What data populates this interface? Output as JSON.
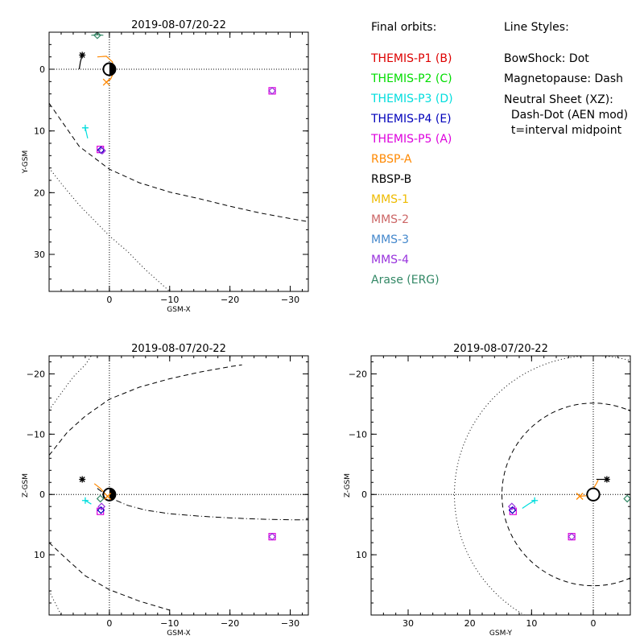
{
  "legend": {
    "orbits_title": "Final orbits:",
    "orbits": [
      {
        "label": "THEMIS-P1 (B)",
        "color": "#dd0000"
      },
      {
        "label": "THEMIS-P2 (C)",
        "color": "#00dd00"
      },
      {
        "label": "THEMIS-P3 (D)",
        "color": "#00dddd"
      },
      {
        "label": "THEMIS-P4 (E)",
        "color": "#0000bb"
      },
      {
        "label": "THEMIS-P5 (A)",
        "color": "#dd00dd"
      },
      {
        "label": "RBSP-A",
        "color": "#ff8800"
      },
      {
        "label": "RBSP-B",
        "color": "#000000"
      },
      {
        "label": "MMS-1",
        "color": "#eebb00"
      },
      {
        "label": "MMS-2",
        "color": "#cc6666"
      },
      {
        "label": "MMS-3",
        "color": "#4488cc"
      },
      {
        "label": "MMS-4",
        "color": "#9933dd"
      },
      {
        "label": "Arase (ERG)",
        "color": "#338866"
      }
    ],
    "styles_title": "Line Styles:",
    "styles": [
      "BowShock: Dot",
      "Magnetopause: Dash",
      "Neutral Sheet (XZ):",
      "  Dash-Dot (AEN mod)",
      "  t=interval midpoint"
    ]
  },
  "chart_data": [
    {
      "type": "scatter",
      "title": "2019-08-07/20-22",
      "xlabel": "GSM-X",
      "ylabel": "Y-GSM",
      "xlim": [
        10,
        -33
      ],
      "ylim": [
        -6,
        36
      ],
      "xticks": [
        0,
        -10,
        -20,
        -30
      ],
      "xtick_labels": [
        "0",
        "−10",
        "−20",
        "−30"
      ],
      "yticks": [
        0,
        10,
        20,
        30
      ],
      "ytick_labels": [
        "0",
        "10",
        "20",
        "30"
      ],
      "earth": [
        0,
        0
      ],
      "markers": [
        {
          "sat": "RBSP-B",
          "x": 4.5,
          "y": -2.3,
          "symbol": "asterisk",
          "color": "#000000"
        },
        {
          "sat": "RBSP-A",
          "x": 0.5,
          "y": 2.1,
          "symbol": "x",
          "color": "#ff8800"
        },
        {
          "sat": "Arase (ERG)",
          "x": 2.0,
          "y": -5.5,
          "symbol": "diamond",
          "color": "#338866"
        },
        {
          "sat": "THEMIS-P3 (D)",
          "x": 4.0,
          "y": 9.5,
          "symbol": "plus",
          "color": "#00dddd"
        },
        {
          "sat": "THEMIS-P5 (A)",
          "x": 1.5,
          "y": 13.0,
          "symbol": "square",
          "color": "#dd00dd"
        },
        {
          "sat": "THEMIS-P4 (E)",
          "x": 1.4,
          "y": 13.1,
          "symbol": "diamond",
          "color": "#0000bb"
        },
        {
          "sat": "MMS-4",
          "x": 1.2,
          "y": 13.2,
          "symbol": "diamond",
          "color": "#9933dd"
        },
        {
          "sat": "THEMIS-P5 (A)",
          "x": -27.0,
          "y": 3.5,
          "symbol": "square",
          "color": "#dd00dd"
        },
        {
          "sat": "MMS-4",
          "x": -27.0,
          "y": 3.5,
          "symbol": "diamond",
          "color": "#9933dd"
        }
      ],
      "tracks": [
        {
          "color": "#ff8800",
          "points": [
            [
              2.0,
              -2.0
            ],
            [
              0.5,
              -2.1
            ],
            [
              -0.5,
              -1.2
            ],
            [
              -0.8,
              0.3
            ],
            [
              -0.2,
              1.6
            ],
            [
              0.5,
              2.1
            ]
          ]
        },
        {
          "color": "#000000",
          "points": [
            [
              5.0,
              0.0
            ],
            [
              4.8,
              -1.2
            ],
            [
              4.5,
              -2.3
            ]
          ]
        },
        {
          "color": "#00dddd",
          "points": [
            [
              4.0,
              9.5
            ],
            [
              3.6,
              11.2
            ]
          ]
        },
        {
          "color": "#338866",
          "points": [
            [
              3.0,
              -5.5
            ],
            [
              2.0,
              -5.6
            ],
            [
              1.0,
              -5.5
            ]
          ]
        }
      ],
      "boundaries": [
        {
          "kind": "magnetopause",
          "style": "dash",
          "points": [
            [
              10,
              5.5
            ],
            [
              5,
              12.5
            ],
            [
              0,
              16.2
            ],
            [
              -5,
              18.4
            ],
            [
              -10,
              19.9
            ],
            [
              -15,
              21.0
            ],
            [
              -20,
              22.2
            ],
            [
              -25,
              23.3
            ],
            [
              -30,
              24.2
            ],
            [
              -33,
              24.7
            ]
          ]
        },
        {
          "kind": "bowshock",
          "style": "dot",
          "points": [
            [
              10,
              16.0
            ],
            [
              8,
              18.5
            ],
            [
              5,
              22.0
            ],
            [
              2,
              25.0
            ],
            [
              0,
              27.0
            ],
            [
              -3,
              29.5
            ],
            [
              -6,
              32.5
            ],
            [
              -10,
              36.0
            ]
          ]
        }
      ]
    },
    {
      "type": "scatter",
      "title": "2019-08-07/20-22",
      "xlabel": "GSM-X",
      "ylabel": "Z-GSM",
      "xlim": [
        10,
        -33
      ],
      "ylim": [
        -23,
        20
      ],
      "xticks": [
        0,
        -10,
        -20,
        -30
      ],
      "xtick_labels": [
        "0",
        "−10",
        "−20",
        "−30"
      ],
      "yticks": [
        -20,
        -10,
        0,
        10
      ],
      "ytick_labels": [
        "−20",
        "−10",
        "0",
        "10"
      ],
      "earth": [
        0,
        0
      ],
      "markers": [
        {
          "sat": "RBSP-B",
          "x": 4.5,
          "y": -2.5,
          "symbol": "asterisk",
          "color": "#000000"
        },
        {
          "sat": "THEMIS-P3 (D)",
          "x": 4.0,
          "y": 1.0,
          "symbol": "plus",
          "color": "#00dddd"
        },
        {
          "sat": "THEMIS-P5 (A)",
          "x": 1.5,
          "y": 2.8,
          "symbol": "square",
          "color": "#dd00dd"
        },
        {
          "sat": "THEMIS-P4 (E)",
          "x": 1.4,
          "y": 2.6,
          "symbol": "diamond",
          "color": "#0000bb"
        },
        {
          "sat": "MMS-4",
          "x": 1.3,
          "y": 2.0,
          "symbol": "diamond",
          "color": "#9933dd"
        },
        {
          "sat": "Arase (ERG)",
          "x": 1.5,
          "y": 0.7,
          "symbol": "diamond",
          "color": "#338866"
        },
        {
          "sat": "RBSP-A",
          "x": 0.3,
          "y": 0.3,
          "symbol": "x",
          "color": "#ff8800"
        },
        {
          "sat": "THEMIS-P5 (A)",
          "x": -27.0,
          "y": 7.0,
          "symbol": "square",
          "color": "#dd00dd"
        },
        {
          "sat": "MMS-4",
          "x": -27.0,
          "y": 7.0,
          "symbol": "diamond",
          "color": "#9933dd"
        }
      ],
      "tracks": [
        {
          "color": "#ff8800",
          "points": [
            [
              2.5,
              -1.8
            ],
            [
              1.5,
              -1.0
            ],
            [
              0.3,
              0.3
            ]
          ]
        },
        {
          "color": "#00dddd",
          "points": [
            [
              4.0,
              1.0
            ],
            [
              3.0,
              1.6
            ]
          ]
        }
      ],
      "boundaries": [
        {
          "kind": "magnetopause",
          "style": "dash",
          "points": [
            [
              10,
              8.0
            ],
            [
              7,
              10.8
            ],
            [
              4,
              13.5
            ],
            [
              0,
              15.8
            ],
            [
              -5,
              17.7
            ],
            [
              -8,
              18.6
            ],
            [
              -10,
              19.2
            ]
          ]
        },
        {
          "kind": "magnetopause",
          "style": "dash",
          "points": [
            [
              10,
              -6.5
            ],
            [
              7,
              -10.3
            ],
            [
              4,
              -13.0
            ],
            [
              0,
              -15.8
            ],
            [
              -5,
              -17.8
            ],
            [
              -10,
              -19.2
            ],
            [
              -15,
              -20.3
            ],
            [
              -20,
              -21.2
            ],
            [
              -22,
              -21.5
            ]
          ]
        },
        {
          "kind": "bowshock",
          "style": "dot",
          "points": [
            [
              10,
              16.0
            ],
            [
              9,
              18.0
            ],
            [
              8,
              20.0
            ]
          ]
        },
        {
          "kind": "bowshock",
          "style": "dot",
          "points": [
            [
              10,
              -14.0
            ],
            [
              8,
              -16.8
            ],
            [
              6,
              -19.5
            ],
            [
              4,
              -21.5
            ],
            [
              3,
              -23.0
            ]
          ]
        },
        {
          "kind": "neutral-sheet",
          "style": "dashdot",
          "points": [
            [
              2.0,
              -1.0
            ],
            [
              0,
              0.5
            ],
            [
              -3,
              1.8
            ],
            [
              -6,
              2.6
            ],
            [
              -10,
              3.2
            ],
            [
              -15,
              3.6
            ],
            [
              -20,
              3.9
            ],
            [
              -25,
              4.1
            ],
            [
              -30,
              4.2
            ],
            [
              -33,
              4.2
            ]
          ]
        }
      ]
    },
    {
      "type": "scatter",
      "title": "2019-08-07/20-22",
      "xlabel": "GSM-Y",
      "ylabel": "Z-GSM",
      "xlim": [
        36,
        -6
      ],
      "ylim": [
        -23,
        20
      ],
      "xticks": [
        30,
        20,
        10,
        0
      ],
      "xtick_labels": [
        "30",
        "20",
        "10",
        "0"
      ],
      "yticks": [
        -20,
        -10,
        0,
        10
      ],
      "ytick_labels": [
        "−20",
        "−10",
        "0",
        "10"
      ],
      "earth": [
        0,
        0
      ],
      "markers": [
        {
          "sat": "RBSP-B",
          "x": -2.2,
          "y": -2.5,
          "symbol": "asterisk",
          "color": "#000000"
        },
        {
          "sat": "RBSP-A",
          "x": 2.2,
          "y": 0.3,
          "symbol": "x",
          "color": "#ff8800"
        },
        {
          "sat": "THEMIS-P3 (D)",
          "x": 9.5,
          "y": 1.0,
          "symbol": "plus",
          "color": "#00dddd"
        },
        {
          "sat": "THEMIS-P5 (A)",
          "x": 13.0,
          "y": 2.8,
          "symbol": "square",
          "color": "#dd00dd"
        },
        {
          "sat": "THEMIS-P4 (E)",
          "x": 13.1,
          "y": 2.6,
          "symbol": "diamond",
          "color": "#0000bb"
        },
        {
          "sat": "MMS-4",
          "x": 13.2,
          "y": 2.0,
          "symbol": "diamond",
          "color": "#9933dd"
        },
        {
          "sat": "Arase (ERG)",
          "x": -5.5,
          "y": 0.7,
          "symbol": "diamond",
          "color": "#338866"
        },
        {
          "sat": "THEMIS-P5 (A)",
          "x": 3.5,
          "y": 7.0,
          "symbol": "square",
          "color": "#dd00dd"
        },
        {
          "sat": "MMS-4",
          "x": 3.5,
          "y": 7.0,
          "symbol": "diamond",
          "color": "#9933dd"
        }
      ],
      "tracks": [
        {
          "color": "#ff8800",
          "points": [
            [
              2.2,
              0.3
            ],
            [
              1.0,
              0.2
            ],
            [
              0.2,
              -0.6
            ],
            [
              -0.5,
              -1.8
            ],
            [
              -0.8,
              -2.4
            ]
          ]
        },
        {
          "color": "#000000",
          "points": [
            [
              -0.5,
              -2.5
            ],
            [
              -1.4,
              -2.5
            ],
            [
              -2.2,
              -2.5
            ]
          ]
        },
        {
          "color": "#00dddd",
          "points": [
            [
              11.5,
              2.3
            ],
            [
              10.5,
              1.6
            ],
            [
              9.5,
              1.0
            ]
          ]
        }
      ],
      "boundaries": [
        {
          "kind": "magnetopause",
          "style": "dash",
          "circle": {
            "cx": 0,
            "cy": 0,
            "r": 14.8
          }
        },
        {
          "kind": "bowshock",
          "style": "dot",
          "circle": {
            "cx": 0,
            "cy": 0,
            "r": 22.5
          }
        }
      ]
    }
  ]
}
